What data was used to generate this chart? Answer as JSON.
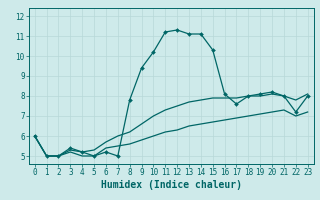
{
  "x": [
    0,
    1,
    2,
    3,
    4,
    5,
    6,
    7,
    8,
    9,
    10,
    11,
    12,
    13,
    14,
    15,
    16,
    17,
    18,
    19,
    20,
    21,
    22,
    23
  ],
  "line1": [
    6.0,
    5.0,
    5.0,
    5.4,
    5.2,
    5.0,
    5.2,
    5.0,
    7.8,
    9.4,
    10.2,
    11.2,
    11.3,
    11.1,
    11.1,
    10.3,
    8.1,
    7.6,
    8.0,
    8.1,
    8.2,
    8.0,
    7.2,
    8.0
  ],
  "line2": [
    6.0,
    5.0,
    5.0,
    5.3,
    5.2,
    5.3,
    5.7,
    6.0,
    6.2,
    6.6,
    7.0,
    7.3,
    7.5,
    7.7,
    7.8,
    7.9,
    7.9,
    7.9,
    8.0,
    8.0,
    8.1,
    8.0,
    7.8,
    8.1
  ],
  "line3": [
    6.0,
    5.0,
    5.0,
    5.2,
    5.0,
    5.0,
    5.4,
    5.5,
    5.6,
    5.8,
    6.0,
    6.2,
    6.3,
    6.5,
    6.6,
    6.7,
    6.8,
    6.9,
    7.0,
    7.1,
    7.2,
    7.3,
    7.0,
    7.2
  ],
  "color": "#006666",
  "bg_color": "#ceeaea",
  "grid_major_color": "#b8d8d8",
  "grid_minor_color": "#c8e4e4",
  "xlabel": "Humidex (Indice chaleur)",
  "ylim": [
    4.6,
    12.4
  ],
  "xlim": [
    -0.5,
    23.5
  ],
  "yticks": [
    5,
    6,
    7,
    8,
    9,
    10,
    11,
    12
  ],
  "xticks": [
    0,
    1,
    2,
    3,
    4,
    5,
    6,
    7,
    8,
    9,
    10,
    11,
    12,
    13,
    14,
    15,
    16,
    17,
    18,
    19,
    20,
    21,
    22,
    23
  ],
  "tick_fontsize": 5.5,
  "xlabel_fontsize": 7.0,
  "marker_size": 2.0,
  "line_width": 0.9
}
